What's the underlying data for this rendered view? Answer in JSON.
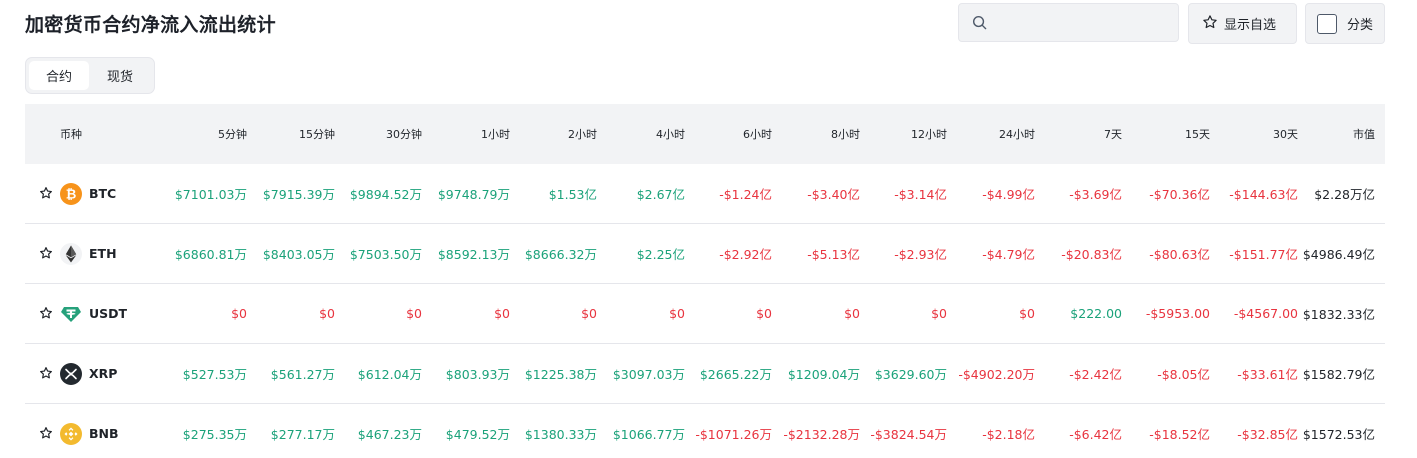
{
  "title": "加密货币合约净流入流出统计",
  "search": {
    "placeholder": "",
    "value": ""
  },
  "buttons": {
    "favorites": "显示自选",
    "category": "分类"
  },
  "tabs": [
    {
      "label": "合约",
      "active": true
    },
    {
      "label": "现货",
      "active": false
    }
  ],
  "colors": {
    "positive": "#1ba27a",
    "negative": "#e8343f",
    "header_bg": "#f2f3f5"
  },
  "table": {
    "headers": [
      "币种",
      "5分钟",
      "15分钟",
      "30分钟",
      "1小时",
      "2小时",
      "4小时",
      "6小时",
      "8小时",
      "12小时",
      "24小时",
      "7天",
      "15天",
      "30天",
      "市值"
    ],
    "rows": [
      {
        "symbol": "BTC",
        "icon": "bitcoin-icon",
        "values": [
          "$7101.03万",
          "$7915.39万",
          "$9894.52万",
          "$9748.79万",
          "$1.53亿",
          "$2.67亿",
          "-$1.24亿",
          "-$3.40亿",
          "-$3.14亿",
          "-$4.99亿",
          "-$3.69亿",
          "-$70.36亿",
          "-$144.63亿"
        ],
        "market_cap": "$2.28万亿"
      },
      {
        "symbol": "ETH",
        "icon": "ethereum-icon",
        "values": [
          "$6860.81万",
          "$8403.05万",
          "$7503.50万",
          "$8592.13万",
          "$8666.32万",
          "$2.25亿",
          "-$2.92亿",
          "-$5.13亿",
          "-$2.93亿",
          "-$4.79亿",
          "-$20.83亿",
          "-$80.63亿",
          "-$151.77亿"
        ],
        "market_cap": "$4986.49亿"
      },
      {
        "symbol": "USDT",
        "icon": "tether-icon",
        "values": [
          "$0",
          "$0",
          "$0",
          "$0",
          "$0",
          "$0",
          "$0",
          "$0",
          "$0",
          "$0",
          "$222.00",
          "-$5953.00",
          "-$4567.00"
        ],
        "value_signs": [
          "neg",
          "neg",
          "neg",
          "neg",
          "neg",
          "neg",
          "neg",
          "neg",
          "neg",
          "neg",
          "pos",
          "neg",
          "neg"
        ],
        "market_cap": "$1832.33亿"
      },
      {
        "symbol": "XRP",
        "icon": "xrp-icon",
        "values": [
          "$527.53万",
          "$561.27万",
          "$612.04万",
          "$803.93万",
          "$1225.38万",
          "$3097.03万",
          "$2665.22万",
          "$1209.04万",
          "$3629.60万",
          "-$4902.20万",
          "-$2.42亿",
          "-$8.05亿",
          "-$33.61亿"
        ],
        "market_cap": "$1582.79亿"
      },
      {
        "symbol": "BNB",
        "icon": "bnb-icon",
        "values": [
          "$275.35万",
          "$277.17万",
          "$467.23万",
          "$479.52万",
          "$1380.33万",
          "$1066.77万",
          "-$1071.26万",
          "-$2132.28万",
          "-$3824.54万",
          "-$2.18亿",
          "-$6.42亿",
          "-$18.52亿",
          "-$32.85亿"
        ],
        "market_cap": "$1572.53亿"
      }
    ]
  }
}
